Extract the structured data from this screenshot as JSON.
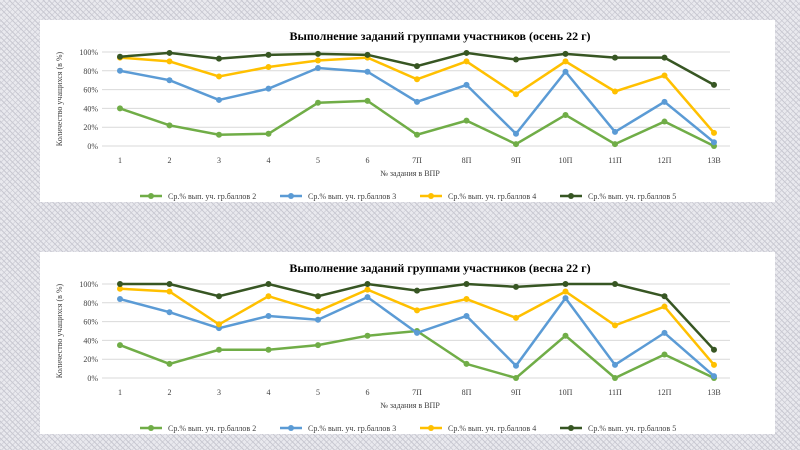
{
  "chart_data": [
    {
      "type": "line",
      "title": "Выполнение заданий группами участников  (осень 22 г)",
      "xlabel": "№ задания в ВПР",
      "ylabel": "Количество учащихся (в %)",
      "ylim": [
        0,
        100
      ],
      "yticks": [
        "0%",
        "20%",
        "40%",
        "60%",
        "80%",
        "100%"
      ],
      "grid": true,
      "legend": "bottom",
      "categories": [
        "1",
        "2",
        "3",
        "4",
        "5",
        "6",
        "7П",
        "8П",
        "9П",
        "10П",
        "11П",
        "12П",
        "13В"
      ],
      "series": [
        {
          "name": "Ср.% вып. уч. гр.баллов 2",
          "color": "#70ad47",
          "values": [
            40,
            22,
            12,
            13,
            46,
            48,
            12,
            27,
            2,
            33,
            2,
            26,
            0
          ]
        },
        {
          "name": "Ср.% вып. уч. гр.баллов 3",
          "color": "#5b9bd5",
          "values": [
            80,
            70,
            49,
            61,
            83,
            79,
            47,
            65,
            13,
            79,
            15,
            47,
            4
          ]
        },
        {
          "name": "Ср.% вып. уч. гр.баллов 4",
          "color": "#ffc000",
          "values": [
            94,
            90,
            74,
            84,
            91,
            94,
            71,
            90,
            55,
            90,
            58,
            75,
            14
          ]
        },
        {
          "name": "Ср.% вып. уч. гр.баллов 5",
          "color": "#375623",
          "values": [
            95,
            99,
            93,
            97,
            98,
            97,
            85,
            99,
            92,
            98,
            94,
            94,
            65
          ]
        }
      ]
    },
    {
      "type": "line",
      "title": "Выполнение заданий группами участников  (весна 22 г)",
      "xlabel": "№ задания в ВПР",
      "ylabel": "Количество учащихся (в %)",
      "ylim": [
        0,
        100
      ],
      "yticks": [
        "0%",
        "20%",
        "40%",
        "60%",
        "80%",
        "100%"
      ],
      "grid": true,
      "legend": "bottom",
      "categories": [
        "1",
        "2",
        "3",
        "4",
        "5",
        "6",
        "7П",
        "8П",
        "9П",
        "10П",
        "11П",
        "12П",
        "13В"
      ],
      "series": [
        {
          "name": "Ср.% вып. уч. гр.баллов 2",
          "color": "#70ad47",
          "values": [
            35,
            15,
            30,
            30,
            35,
            45,
            50,
            15,
            0,
            45,
            0,
            25,
            0
          ]
        },
        {
          "name": "Ср.% вып. уч. гр.баллов 3",
          "color": "#5b9bd5",
          "values": [
            84,
            70,
            53,
            66,
            62,
            86,
            48,
            66,
            13,
            85,
            14,
            48,
            2
          ]
        },
        {
          "name": "Ср.% вып. уч. гр.баллов 4",
          "color": "#ffc000",
          "values": [
            95,
            92,
            57,
            87,
            71,
            94,
            72,
            84,
            64,
            92,
            56,
            76,
            14
          ]
        },
        {
          "name": "Ср.% вып. уч. гр.баллов 5",
          "color": "#375623",
          "values": [
            100,
            100,
            87,
            100,
            87,
            100,
            93,
            100,
            97,
            100,
            100,
            87,
            30
          ]
        }
      ]
    }
  ]
}
